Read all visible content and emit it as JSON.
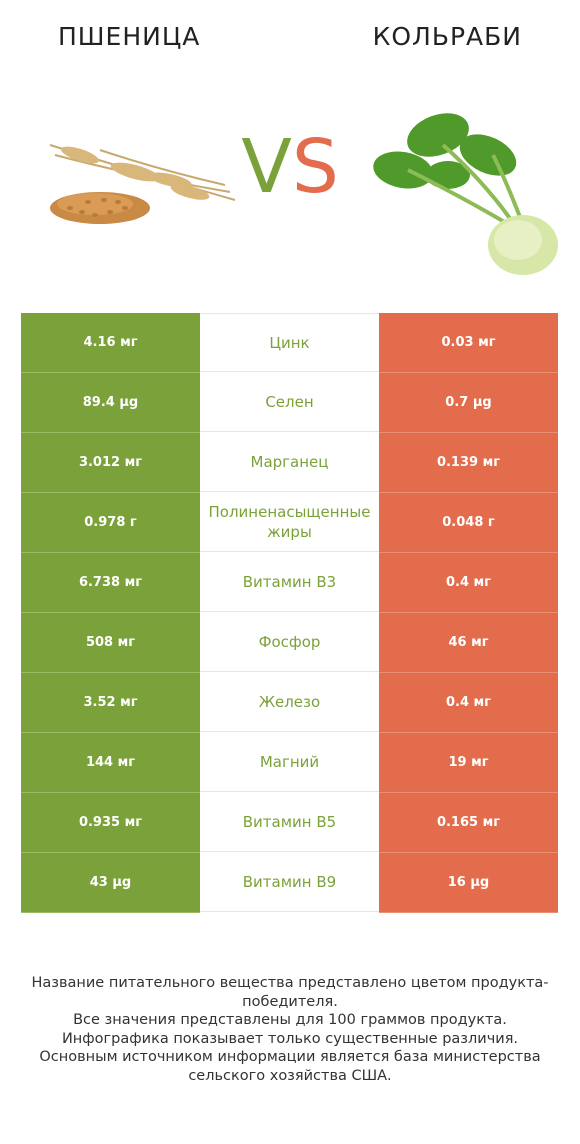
{
  "titles": {
    "left": "ПШЕНИЦА",
    "right": "КОЛЬРАБИ",
    "vs_v": "V",
    "vs_s": "S"
  },
  "colors": {
    "winner_left": "#7ba23a",
    "winner_right": "#e26c4c"
  },
  "images": {
    "left": "wheat-image",
    "right": "kohlrabi-image"
  },
  "chart_data": {
    "type": "table",
    "columns": [
      "ПШЕНИЦА",
      "",
      "КОЛЬРАБИ"
    ],
    "rows": [
      {
        "left": "4.16 мг",
        "nutrient": "Цинк",
        "right": "0.03 мг",
        "winner": "left"
      },
      {
        "left": "89.4 µg",
        "nutrient": "Селен",
        "right": "0.7 µg",
        "winner": "left"
      },
      {
        "left": "3.012 мг",
        "nutrient": "Марганец",
        "right": "0.139 мг",
        "winner": "left"
      },
      {
        "left": "0.978 г",
        "nutrient": "Полиненасыщенные жиры",
        "right": "0.048 г",
        "winner": "left"
      },
      {
        "left": "6.738 мг",
        "nutrient": "Витамин B3",
        "right": "0.4 мг",
        "winner": "left"
      },
      {
        "left": "508 мг",
        "nutrient": "Фосфор",
        "right": "46 мг",
        "winner": "left"
      },
      {
        "left": "3.52 мг",
        "nutrient": "Железо",
        "right": "0.4 мг",
        "winner": "left"
      },
      {
        "left": "144 мг",
        "nutrient": "Магний",
        "right": "19 мг",
        "winner": "left"
      },
      {
        "left": "0.935 мг",
        "nutrient": "Витамин B5",
        "right": "0.165 мг",
        "winner": "left"
      },
      {
        "left": "43 µg",
        "nutrient": "Витамин B9",
        "right": "16 µg",
        "winner": "left"
      }
    ]
  },
  "footer": {
    "line1": "Название питательного вещества представлено цветом продукта-победителя.",
    "line2": "Все значения представлены для 100 граммов продукта.",
    "line3": "Инфографика показывает только существенные различия.",
    "line4": "Основным источником информации является база министерства сельского хозяйства США."
  }
}
